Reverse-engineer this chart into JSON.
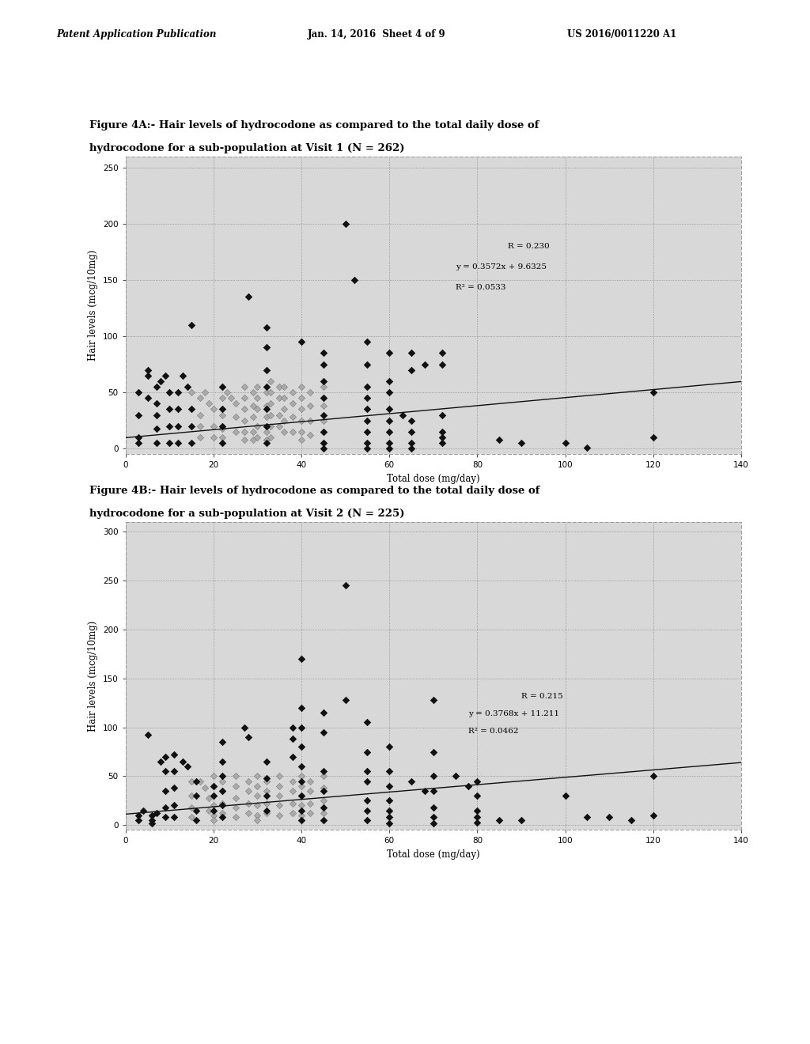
{
  "page_header_left": "Patent Application Publication",
  "page_header_mid": "Jan. 14, 2016  Sheet 4 of 9",
  "page_header_right": "US 2016/0011220 A1",
  "fig4A_title_line1": "Figure 4A:- Hair levels of hydrocodone as compared to the total daily dose of",
  "fig4A_title_line2": "hydrocodone for a sub-population at Visit 1 (N = 262)",
  "fig4B_title_line1": "Figure 4B:- Hair levels of hydrocodone as compared to the total daily dose of",
  "fig4B_title_line2": "hydrocodone for a sub-population at Visit 2 (N = 225)",
  "xlabel": "Total dose (mg/day)",
  "ylabel": "Hair levels (mcg/10mg)",
  "fig4A": {
    "R": "R = 0.230",
    "eq_line1": "y = 0.3572x + 9.6325",
    "eq_line2": "R² = 0.0533",
    "slope": 0.3572,
    "intercept": 9.6325,
    "xlim": [
      0,
      140
    ],
    "ylim": [
      -5,
      260
    ],
    "xticks": [
      0,
      20,
      40,
      60,
      80,
      100,
      120,
      140
    ],
    "yticks": [
      0,
      50,
      100,
      150,
      200,
      250
    ],
    "dark_points": [
      [
        3,
        50
      ],
      [
        3,
        30
      ],
      [
        3,
        10
      ],
      [
        3,
        5
      ],
      [
        5,
        65
      ],
      [
        5,
        45
      ],
      [
        5,
        70
      ],
      [
        7,
        55
      ],
      [
        7,
        40
      ],
      [
        7,
        30
      ],
      [
        7,
        18
      ],
      [
        7,
        5
      ],
      [
        8,
        60
      ],
      [
        9,
        65
      ],
      [
        10,
        50
      ],
      [
        10,
        35
      ],
      [
        10,
        20
      ],
      [
        10,
        5
      ],
      [
        12,
        50
      ],
      [
        12,
        35
      ],
      [
        12,
        20
      ],
      [
        12,
        5
      ],
      [
        13,
        65
      ],
      [
        14,
        55
      ],
      [
        15,
        110
      ],
      [
        15,
        35
      ],
      [
        15,
        20
      ],
      [
        15,
        5
      ],
      [
        22,
        55
      ],
      [
        22,
        35
      ],
      [
        22,
        20
      ],
      [
        22,
        5
      ],
      [
        28,
        135
      ],
      [
        32,
        108
      ],
      [
        32,
        90
      ],
      [
        32,
        70
      ],
      [
        32,
        55
      ],
      [
        32,
        35
      ],
      [
        32,
        20
      ],
      [
        32,
        5
      ],
      [
        40,
        95
      ],
      [
        45,
        85
      ],
      [
        45,
        75
      ],
      [
        45,
        60
      ],
      [
        45,
        45
      ],
      [
        45,
        30
      ],
      [
        45,
        15
      ],
      [
        45,
        5
      ],
      [
        45,
        0
      ],
      [
        50,
        200
      ],
      [
        52,
        150
      ],
      [
        55,
        95
      ],
      [
        55,
        75
      ],
      [
        55,
        55
      ],
      [
        55,
        45
      ],
      [
        55,
        35
      ],
      [
        55,
        25
      ],
      [
        55,
        15
      ],
      [
        55,
        5
      ],
      [
        55,
        0
      ],
      [
        60,
        85
      ],
      [
        60,
        60
      ],
      [
        60,
        50
      ],
      [
        60,
        35
      ],
      [
        60,
        25
      ],
      [
        60,
        15
      ],
      [
        60,
        5
      ],
      [
        60,
        0
      ],
      [
        63,
        30
      ],
      [
        65,
        85
      ],
      [
        65,
        70
      ],
      [
        65,
        25
      ],
      [
        65,
        15
      ],
      [
        65,
        5
      ],
      [
        65,
        0
      ],
      [
        68,
        75
      ],
      [
        72,
        85
      ],
      [
        72,
        75
      ],
      [
        72,
        30
      ],
      [
        72,
        15
      ],
      [
        72,
        10
      ],
      [
        72,
        5
      ],
      [
        85,
        8
      ],
      [
        90,
        5
      ],
      [
        100,
        5
      ],
      [
        105,
        1
      ],
      [
        120,
        50
      ],
      [
        120,
        10
      ]
    ],
    "gray_points": [
      [
        15,
        50
      ],
      [
        17,
        45
      ],
      [
        17,
        30
      ],
      [
        17,
        20
      ],
      [
        17,
        10
      ],
      [
        18,
        50
      ],
      [
        19,
        40
      ],
      [
        20,
        35
      ],
      [
        20,
        20
      ],
      [
        20,
        10
      ],
      [
        22,
        55
      ],
      [
        22,
        45
      ],
      [
        22,
        30
      ],
      [
        22,
        18
      ],
      [
        22,
        10
      ],
      [
        23,
        50
      ],
      [
        24,
        45
      ],
      [
        25,
        40
      ],
      [
        25,
        28
      ],
      [
        25,
        15
      ],
      [
        27,
        55
      ],
      [
        27,
        45
      ],
      [
        27,
        35
      ],
      [
        27,
        25
      ],
      [
        27,
        15
      ],
      [
        27,
        8
      ],
      [
        29,
        50
      ],
      [
        29,
        38
      ],
      [
        29,
        28
      ],
      [
        29,
        15
      ],
      [
        29,
        8
      ],
      [
        30,
        55
      ],
      [
        30,
        45
      ],
      [
        30,
        35
      ],
      [
        30,
        20
      ],
      [
        30,
        10
      ],
      [
        32,
        50
      ],
      [
        32,
        38
      ],
      [
        32,
        28
      ],
      [
        32,
        15
      ],
      [
        32,
        8
      ],
      [
        33,
        60
      ],
      [
        33,
        50
      ],
      [
        33,
        40
      ],
      [
        33,
        30
      ],
      [
        33,
        20
      ],
      [
        33,
        10
      ],
      [
        35,
        55
      ],
      [
        35,
        45
      ],
      [
        35,
        30
      ],
      [
        35,
        20
      ],
      [
        36,
        55
      ],
      [
        36,
        45
      ],
      [
        36,
        35
      ],
      [
        36,
        25
      ],
      [
        36,
        15
      ],
      [
        38,
        50
      ],
      [
        38,
        40
      ],
      [
        38,
        28
      ],
      [
        38,
        15
      ],
      [
        40,
        55
      ],
      [
        40,
        45
      ],
      [
        40,
        35
      ],
      [
        40,
        25
      ],
      [
        40,
        15
      ],
      [
        40,
        8
      ],
      [
        42,
        50
      ],
      [
        42,
        38
      ],
      [
        42,
        25
      ],
      [
        42,
        12
      ],
      [
        45,
        55
      ],
      [
        45,
        45
      ],
      [
        45,
        38
      ],
      [
        45,
        25
      ],
      [
        45,
        15
      ],
      [
        45,
        5
      ]
    ]
  },
  "fig4B": {
    "R": "R = 0.215",
    "eq_line1": "y = 0.3768x + 11.211",
    "eq_line2": "R² = 0.0462",
    "slope": 0.3768,
    "intercept": 11.211,
    "xlim": [
      0,
      140
    ],
    "ylim": [
      -5,
      310
    ],
    "xticks": [
      0,
      20,
      40,
      60,
      80,
      100,
      120,
      140
    ],
    "yticks": [
      0,
      50,
      100,
      150,
      200,
      250,
      300
    ],
    "dark_points": [
      [
        3,
        10
      ],
      [
        3,
        5
      ],
      [
        4,
        15
      ],
      [
        5,
        92
      ],
      [
        6,
        10
      ],
      [
        6,
        5
      ],
      [
        6,
        2
      ],
      [
        7,
        12
      ],
      [
        8,
        65
      ],
      [
        9,
        70
      ],
      [
        9,
        55
      ],
      [
        9,
        35
      ],
      [
        9,
        18
      ],
      [
        9,
        8
      ],
      [
        11,
        72
      ],
      [
        11,
        55
      ],
      [
        11,
        38
      ],
      [
        11,
        20
      ],
      [
        11,
        8
      ],
      [
        13,
        65
      ],
      [
        14,
        60
      ],
      [
        16,
        45
      ],
      [
        16,
        30
      ],
      [
        16,
        15
      ],
      [
        16,
        5
      ],
      [
        20,
        40
      ],
      [
        20,
        30
      ],
      [
        20,
        15
      ],
      [
        22,
        85
      ],
      [
        22,
        65
      ],
      [
        22,
        50
      ],
      [
        22,
        35
      ],
      [
        22,
        20
      ],
      [
        22,
        8
      ],
      [
        27,
        100
      ],
      [
        28,
        90
      ],
      [
        32,
        65
      ],
      [
        32,
        48
      ],
      [
        32,
        30
      ],
      [
        32,
        15
      ],
      [
        38,
        100
      ],
      [
        38,
        88
      ],
      [
        38,
        70
      ],
      [
        40,
        170
      ],
      [
        40,
        120
      ],
      [
        40,
        100
      ],
      [
        40,
        80
      ],
      [
        40,
        60
      ],
      [
        40,
        45
      ],
      [
        40,
        30
      ],
      [
        40,
        15
      ],
      [
        40,
        5
      ],
      [
        45,
        115
      ],
      [
        45,
        95
      ],
      [
        45,
        55
      ],
      [
        45,
        35
      ],
      [
        45,
        18
      ],
      [
        45,
        5
      ],
      [
        50,
        245
      ],
      [
        50,
        128
      ],
      [
        55,
        105
      ],
      [
        55,
        75
      ],
      [
        55,
        55
      ],
      [
        55,
        45
      ],
      [
        55,
        25
      ],
      [
        55,
        15
      ],
      [
        55,
        5
      ],
      [
        60,
        80
      ],
      [
        60,
        55
      ],
      [
        60,
        40
      ],
      [
        60,
        25
      ],
      [
        60,
        15
      ],
      [
        60,
        8
      ],
      [
        60,
        2
      ],
      [
        65,
        45
      ],
      [
        68,
        35
      ],
      [
        70,
        128
      ],
      [
        70,
        75
      ],
      [
        70,
        50
      ],
      [
        70,
        35
      ],
      [
        70,
        18
      ],
      [
        70,
        8
      ],
      [
        70,
        2
      ],
      [
        75,
        50
      ],
      [
        78,
        40
      ],
      [
        80,
        45
      ],
      [
        80,
        30
      ],
      [
        80,
        15
      ],
      [
        80,
        8
      ],
      [
        80,
        3
      ],
      [
        85,
        5
      ],
      [
        90,
        5
      ],
      [
        100,
        30
      ],
      [
        105,
        8
      ],
      [
        110,
        8
      ],
      [
        115,
        5
      ],
      [
        120,
        50
      ],
      [
        120,
        10
      ]
    ],
    "gray_points": [
      [
        15,
        45
      ],
      [
        15,
        30
      ],
      [
        15,
        18
      ],
      [
        15,
        8
      ],
      [
        17,
        45
      ],
      [
        18,
        38
      ],
      [
        19,
        28
      ],
      [
        19,
        15
      ],
      [
        20,
        50
      ],
      [
        20,
        40
      ],
      [
        20,
        30
      ],
      [
        20,
        20
      ],
      [
        20,
        10
      ],
      [
        20,
        5
      ],
      [
        22,
        45
      ],
      [
        22,
        35
      ],
      [
        22,
        22
      ],
      [
        22,
        12
      ],
      [
        25,
        50
      ],
      [
        25,
        40
      ],
      [
        25,
        28
      ],
      [
        25,
        18
      ],
      [
        25,
        8
      ],
      [
        28,
        45
      ],
      [
        28,
        35
      ],
      [
        28,
        22
      ],
      [
        28,
        12
      ],
      [
        30,
        50
      ],
      [
        30,
        40
      ],
      [
        30,
        30
      ],
      [
        30,
        20
      ],
      [
        30,
        10
      ],
      [
        30,
        5
      ],
      [
        32,
        45
      ],
      [
        32,
        35
      ],
      [
        32,
        22
      ],
      [
        32,
        12
      ],
      [
        35,
        50
      ],
      [
        35,
        40
      ],
      [
        35,
        30
      ],
      [
        35,
        20
      ],
      [
        35,
        10
      ],
      [
        38,
        45
      ],
      [
        38,
        35
      ],
      [
        38,
        22
      ],
      [
        38,
        12
      ],
      [
        40,
        50
      ],
      [
        40,
        40
      ],
      [
        40,
        30
      ],
      [
        40,
        20
      ],
      [
        40,
        10
      ],
      [
        40,
        5
      ],
      [
        42,
        45
      ],
      [
        42,
        35
      ],
      [
        42,
        22
      ],
      [
        42,
        12
      ],
      [
        45,
        50
      ],
      [
        45,
        38
      ],
      [
        45,
        25
      ],
      [
        45,
        12
      ],
      [
        45,
        5
      ]
    ]
  },
  "background_color": "#ffffff",
  "plot_bg_color": "#d8d8d8",
  "grid_color": "#888888",
  "dark_marker_color": "#111111",
  "gray_marker_color": "#aaaaaa",
  "marker_size": 18,
  "line_color": "#111111"
}
